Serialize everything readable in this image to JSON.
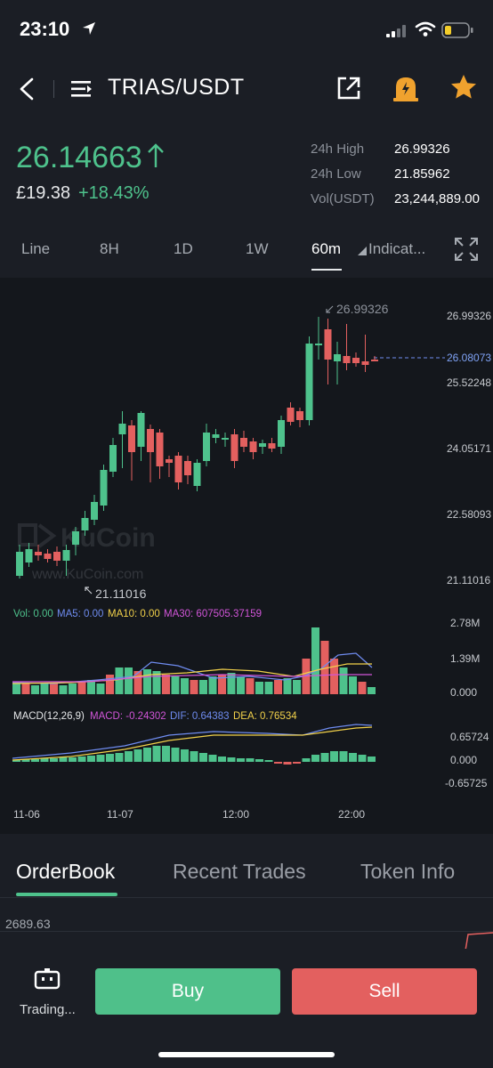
{
  "status": {
    "time": "23:10"
  },
  "header": {
    "pair": "TRIAS/USDT"
  },
  "ticker": {
    "price": "26.14663",
    "fiat": "£19.38",
    "change": "+18.43%",
    "stats": [
      {
        "label": "24h High",
        "value": "26.99326"
      },
      {
        "label": "24h Low",
        "value": "21.85962"
      },
      {
        "label": "Vol(USDT)",
        "value": "23,244,889.00"
      }
    ]
  },
  "timeframes": [
    "Line",
    "8H",
    "1D",
    "1W",
    "60m",
    "Indicat..."
  ],
  "chart": {
    "price_labels": [
      "26.99326",
      "26.08073",
      "25.52248",
      "24.05171",
      "22.58093",
      "21.11016"
    ],
    "high_marker": "26.99326",
    "low_marker": "21.11016",
    "watermark": "KuCoin",
    "watermark_sub": "www.KuCoin.com",
    "vol_legend": {
      "vol": "Vol: 0.00",
      "ma5": "MA5: 0.00",
      "ma10": "MA10: 0.00",
      "ma30": "MA30: 607505.37159"
    },
    "vol_labels": [
      "2.78M",
      "1.39M",
      "0.000"
    ],
    "macd_legend": {
      "name": "MACD(12,26,9)",
      "macd": "MACD: -0.24302",
      "dif": "DIF: 0.64383",
      "dea": "DEA: 0.76534"
    },
    "macd_labels": [
      "0.65724",
      "0.000",
      "-0.65725"
    ],
    "time_labels": [
      "11-06",
      "11-07",
      "12:00",
      "22:00"
    ],
    "colors": {
      "up": "#4ec28c",
      "down": "#e3605f",
      "ma5": "#6f8cf0",
      "ma10": "#f2d14a",
      "ma30": "#d155d8"
    }
  },
  "tabs": [
    "OrderBook",
    "Recent Trades",
    "Token Info"
  ],
  "orderbook": {
    "first_price": "2689.63"
  },
  "bottom": {
    "trading": "Trading...",
    "buy": "Buy",
    "sell": "Sell"
  }
}
